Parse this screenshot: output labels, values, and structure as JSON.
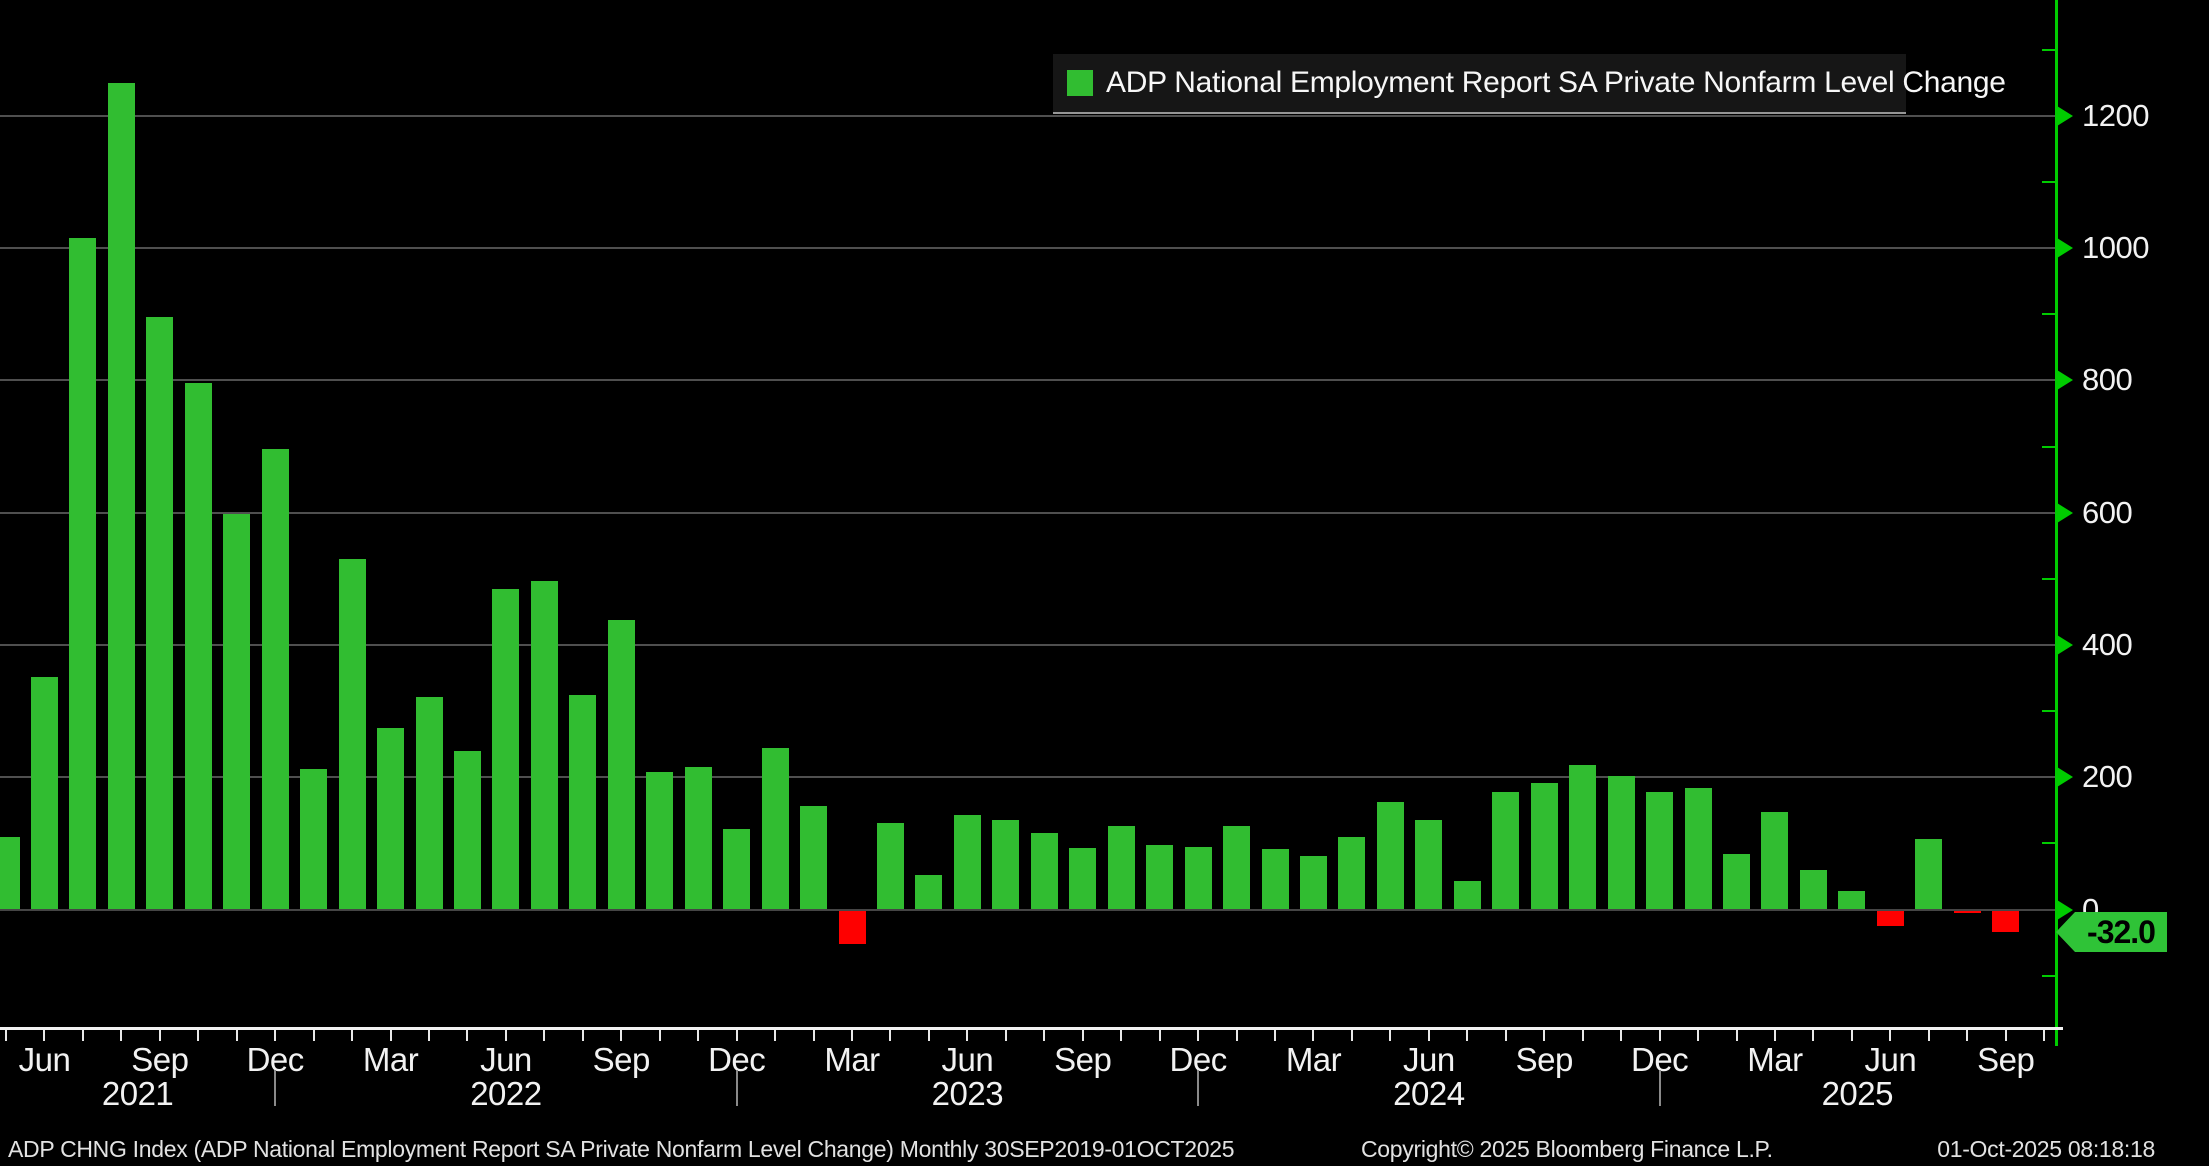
{
  "legend": {
    "swatch_color": "#31bd31",
    "label": "ADP National Employment Report SA Private Nonfarm Level Change"
  },
  "last_value_tag": {
    "text": "-32.0"
  },
  "footer": {
    "left": "ADP CHNG Index (ADP National Employment Report SA Private Nonfarm Level Change)  Monthly 30SEP2019-01OCT2025",
    "center": "Copyright© 2025 Bloomberg Finance L.P.",
    "right": "01-Oct-2025 08:18:18"
  },
  "chart_data": {
    "type": "bar",
    "title": "ADP National Employment Report SA Private Nonfarm Level Change",
    "xlabel": "",
    "ylabel": "",
    "ylim": [
      -100,
      1340
    ],
    "y_major_ticks": [
      0,
      200,
      400,
      600,
      800,
      1000,
      1200
    ],
    "y_minor_step": 100,
    "grid": "horizontal-gray",
    "legend_position": "top-right",
    "positive_color": "#31bd31",
    "negative_color": "#fe0000",
    "quarter_label_months": [
      "Mar",
      "Jun",
      "Sep",
      "Dec"
    ],
    "last_value": -32.0,
    "categories": [
      "May 2021",
      "Jun 2021",
      "Jul 2021",
      "Aug 2021",
      "Sep 2021",
      "Oct 2021",
      "Nov 2021",
      "Dec 2021",
      "Jan 2022",
      "Feb 2022",
      "Mar 2022",
      "Apr 2022",
      "May 2022",
      "Jun 2022",
      "Jul 2022",
      "Aug 2022",
      "Sep 2022",
      "Oct 2022",
      "Nov 2022",
      "Dec 2022",
      "Jan 2023",
      "Feb 2023",
      "Mar 2023",
      "Apr 2023",
      "May 2023",
      "Jun 2023",
      "Jul 2023",
      "Aug 2023",
      "Sep 2023",
      "Oct 2023",
      "Nov 2023",
      "Dec 2023",
      "Jan 2024",
      "Feb 2024",
      "Mar 2024",
      "Apr 2024",
      "May 2024",
      "Jun 2024",
      "Jul 2024",
      "Aug 2024",
      "Sep 2024",
      "Oct 2024",
      "Nov 2024",
      "Dec 2024",
      "Jan 2025",
      "Feb 2025",
      "Mar 2025",
      "Apr 2025",
      "May 2025",
      "Jun 2025",
      "Jul 2025",
      "Aug 2025",
      "Sep 2025"
    ],
    "values": [
      110,
      352,
      1015,
      1250,
      896,
      796,
      598,
      696,
      213,
      530,
      274,
      322,
      239,
      485,
      497,
      324,
      437,
      208,
      215,
      122,
      244,
      156,
      -50,
      131,
      52,
      143,
      136,
      116,
      93,
      126,
      97,
      95,
      127,
      91,
      81,
      110,
      163,
      136,
      43,
      178,
      192,
      218,
      202,
      177,
      184,
      84,
      147,
      60,
      28,
      -23,
      106,
      -3,
      -32
    ]
  }
}
